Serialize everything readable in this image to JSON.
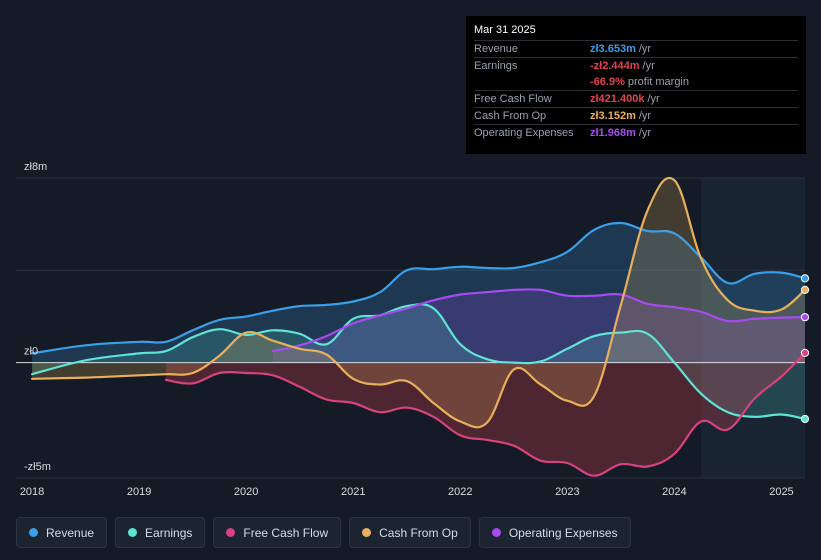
{
  "colors": {
    "revenue": "#3b9ee8",
    "earnings": "#5ee3d5",
    "fcf": "#d6437e",
    "cfo": "#e8b05c",
    "opex": "#a64bf0",
    "loss": "#e0434f"
  },
  "tooltip": {
    "date": "Mar 31 2025",
    "rows": [
      {
        "label": "Revenue",
        "value": "zł3.653m",
        "suffix": "/yr",
        "color": "#3b9ee8"
      },
      {
        "label": "Earnings",
        "value": "-zł2.444m",
        "suffix": "/yr",
        "color": "#e0434f"
      },
      {
        "label": "",
        "value": "-66.9%",
        "suffix": "profit margin",
        "color": "#e0434f"
      },
      {
        "label": "Free Cash Flow",
        "value": "zł421.400k",
        "suffix": "/yr",
        "color": "#e0434f"
      },
      {
        "label": "Cash From Op",
        "value": "zł3.152m",
        "suffix": "/yr",
        "color": "#e8b05c"
      },
      {
        "label": "Operating Expenses",
        "value": "zł1.968m",
        "suffix": "/yr",
        "color": "#a64bf0"
      }
    ]
  },
  "legend": [
    {
      "label": "Revenue",
      "color": "#3b9ee8"
    },
    {
      "label": "Earnings",
      "color": "#5ee3d5"
    },
    {
      "label": "Free Cash Flow",
      "color": "#d6437e"
    },
    {
      "label": "Cash From Op",
      "color": "#e8b05c"
    },
    {
      "label": "Operating Expenses",
      "color": "#a64bf0"
    }
  ],
  "chart_data": {
    "type": "area",
    "title": "",
    "unit": "PLN millions",
    "xlim": [
      2017.85,
      2025.22
    ],
    "ylim": [
      -5,
      8
    ],
    "ytick_labels": [
      {
        "value": 8,
        "label": "zł8m"
      },
      {
        "value": 0,
        "label": "zł0"
      },
      {
        "value": -5,
        "label": "-zł5m"
      }
    ],
    "xticks": [
      2018,
      2019,
      2020,
      2021,
      2022,
      2023,
      2024,
      2025
    ],
    "xtick_labels": [
      "2018",
      "2019",
      "2020",
      "2021",
      "2022",
      "2023",
      "2024",
      "2025"
    ],
    "past_data_from": 2024.25,
    "series": [
      {
        "name": "Revenue",
        "key": "revenue",
        "x": [
          2018.0,
          2018.5,
          2019.0,
          2019.25,
          2019.5,
          2019.75,
          2020.0,
          2020.25,
          2020.5,
          2020.75,
          2021.0,
          2021.25,
          2021.5,
          2021.75,
          2022.0,
          2022.25,
          2022.5,
          2022.75,
          2023.0,
          2023.25,
          2023.5,
          2023.75,
          2024.0,
          2024.25,
          2024.5,
          2024.75,
          2025.0,
          2025.22
        ],
        "values": [
          0.4,
          0.75,
          0.9,
          0.9,
          1.4,
          1.85,
          2.0,
          2.25,
          2.45,
          2.5,
          2.65,
          3.05,
          4.0,
          4.05,
          4.15,
          4.1,
          4.1,
          4.35,
          4.8,
          5.75,
          6.05,
          5.7,
          5.6,
          4.55,
          3.45,
          3.85,
          3.9,
          3.653
        ]
      },
      {
        "name": "Earnings",
        "key": "earnings",
        "x": [
          2018.0,
          2018.5,
          2019.0,
          2019.25,
          2019.5,
          2019.75,
          2020.0,
          2020.25,
          2020.5,
          2020.75,
          2021.0,
          2021.25,
          2021.5,
          2021.75,
          2022.0,
          2022.25,
          2022.5,
          2022.75,
          2023.0,
          2023.25,
          2023.5,
          2023.75,
          2024.0,
          2024.25,
          2024.5,
          2024.75,
          2025.0,
          2025.22
        ],
        "values": [
          -0.5,
          0.1,
          0.4,
          0.5,
          1.1,
          1.45,
          1.2,
          1.4,
          1.25,
          0.8,
          1.9,
          2.05,
          2.45,
          2.35,
          0.8,
          0.15,
          0.0,
          0.05,
          0.6,
          1.15,
          1.3,
          1.25,
          0.0,
          -1.35,
          -2.15,
          -2.35,
          -2.25,
          -2.444
        ]
      },
      {
        "name": "Free Cash Flow",
        "key": "fcf",
        "x": [
          2019.25,
          2019.5,
          2019.75,
          2020.0,
          2020.25,
          2020.5,
          2020.75,
          2021.0,
          2021.25,
          2021.5,
          2021.75,
          2022.0,
          2022.25,
          2022.5,
          2022.75,
          2023.0,
          2023.25,
          2023.5,
          2023.75,
          2024.0,
          2024.25,
          2024.5,
          2024.75,
          2025.0,
          2025.22
        ],
        "values": [
          -0.75,
          -0.9,
          -0.45,
          -0.45,
          -0.55,
          -1.05,
          -1.6,
          -1.75,
          -2.15,
          -1.95,
          -2.35,
          -3.15,
          -3.35,
          -3.6,
          -4.25,
          -4.35,
          -4.9,
          -4.4,
          -4.5,
          -3.95,
          -2.55,
          -2.9,
          -1.55,
          -0.6,
          0.4214
        ]
      },
      {
        "name": "Cash From Op",
        "key": "cfo",
        "x": [
          2018.0,
          2018.5,
          2019.0,
          2019.25,
          2019.5,
          2019.75,
          2020.0,
          2020.25,
          2020.5,
          2020.75,
          2021.0,
          2021.25,
          2021.5,
          2021.75,
          2022.0,
          2022.25,
          2022.5,
          2022.75,
          2023.0,
          2023.25,
          2023.5,
          2023.75,
          2024.0,
          2024.25,
          2024.5,
          2024.75,
          2025.0,
          2025.22
        ],
        "values": [
          -0.7,
          -0.65,
          -0.55,
          -0.5,
          -0.45,
          0.3,
          1.3,
          0.95,
          0.6,
          0.35,
          -0.7,
          -0.95,
          -0.8,
          -1.75,
          -2.55,
          -2.6,
          -0.3,
          -0.95,
          -1.65,
          -1.45,
          2.5,
          6.6,
          7.9,
          4.5,
          2.7,
          2.25,
          2.3,
          3.152
        ]
      },
      {
        "name": "Operating Expenses",
        "key": "opex",
        "x": [
          2020.25,
          2020.5,
          2020.75,
          2021.0,
          2021.25,
          2021.5,
          2021.75,
          2022.0,
          2022.25,
          2022.5,
          2022.75,
          2023.0,
          2023.25,
          2023.5,
          2023.75,
          2024.0,
          2024.25,
          2024.5,
          2024.75,
          2025.0,
          2025.22
        ],
        "values": [
          0.5,
          0.75,
          1.15,
          1.7,
          2.05,
          2.35,
          2.7,
          2.95,
          3.05,
          3.15,
          3.15,
          2.9,
          2.9,
          2.95,
          2.55,
          2.4,
          2.2,
          1.8,
          1.9,
          1.95,
          1.968
        ]
      }
    ]
  }
}
